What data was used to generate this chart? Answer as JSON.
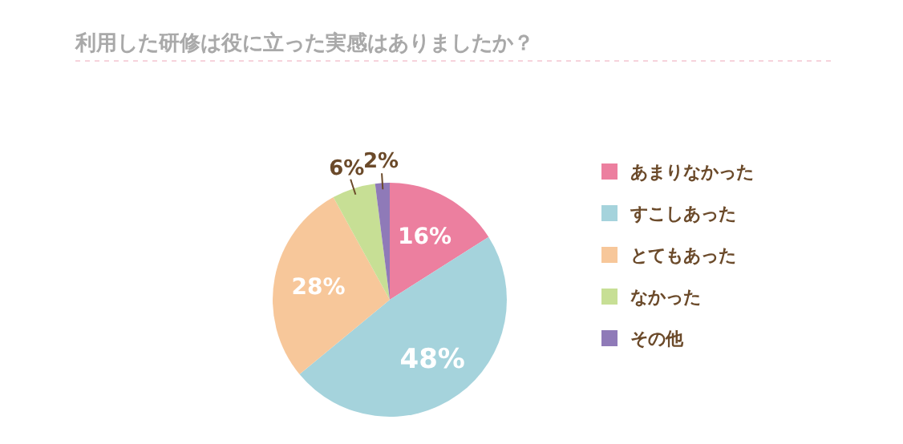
{
  "chart_data": {
    "type": "pie",
    "title": "利用した研修は役に立った実感はありましたか？",
    "categories": [
      "あまりなかった",
      "すこしあった",
      "とてもあった",
      "なかった",
      "その他"
    ],
    "values": [
      16,
      48,
      28,
      6,
      2
    ],
    "colors": [
      "#ec7f9f",
      "#a5d3dc",
      "#f7c79a",
      "#c7df95",
      "#8f7ab8"
    ],
    "value_labels": [
      "16%",
      "48%",
      "28%",
      "6%",
      "2%"
    ],
    "legend": "right"
  }
}
